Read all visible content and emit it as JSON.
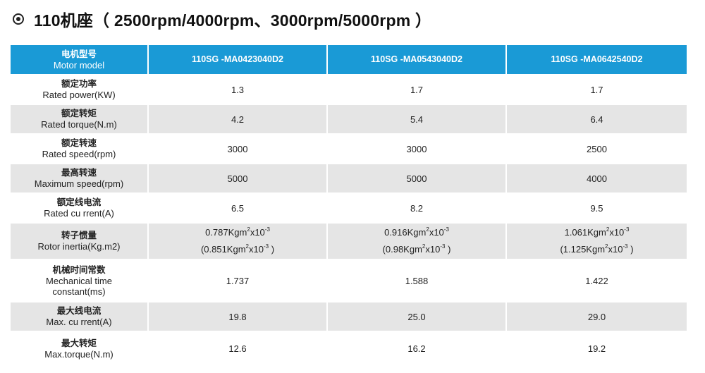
{
  "title": "110机座（ 2500rpm/4000rpm、3000rpm/5000rpm ）",
  "icon": "circle-dot-icon",
  "header": {
    "label_zh": "电机型号",
    "label_en": "Motor model",
    "models": [
      "110SG -MA0423040D2",
      "110SG -MA0543040D2",
      "110SG -MA0642540D2"
    ]
  },
  "rows": [
    {
      "zh": "额定功率",
      "en": "Rated power(KW)",
      "values": [
        "1.3",
        "1.7",
        "1.7"
      ]
    },
    {
      "zh": "额定转矩",
      "en": "Rated torque(N.m)",
      "values": [
        "4.2",
        "5.4",
        "6.4"
      ]
    },
    {
      "zh": "额定转速",
      "en": "Rated speed(rpm)",
      "values": [
        "3000",
        "3000",
        "2500"
      ]
    },
    {
      "zh": "最高转速",
      "en": "Maximum speed(rpm)",
      "values": [
        "5000",
        "5000",
        "4000"
      ]
    },
    {
      "zh": "额定线电流",
      "en": "Rated cu rrent(A)",
      "values": [
        "6.5",
        "8.2",
        "9.5"
      ]
    },
    {
      "zh": "转子惯量",
      "en": "Rotor inertia(Kg.m2)",
      "inertia": [
        {
          "a": "0.787Kgm",
          "b": "(0.851Kgm"
        },
        {
          "a": "0.916Kgm",
          "b": "(0.98Kgm"
        },
        {
          "a": "1.061Kgm",
          "b": "(1.125Kgm"
        }
      ]
    },
    {
      "zh": "机械时间常数",
      "en1": "Mechanical time",
      "en2": "constant(ms)",
      "values": [
        "1.737",
        "1.588",
        "1.422"
      ]
    },
    {
      "zh": "最大线电流",
      "en": "Max. cu rrent(A)",
      "values": [
        "19.8",
        "25.0",
        "29.0"
      ]
    },
    {
      "zh": "最大转矩",
      "en": "Max.torque(N.m)",
      "values": [
        "12.6",
        "16.2",
        "19.2"
      ]
    }
  ],
  "inertia_units": {
    "sq": "2",
    "x10": "x10",
    "exp": "-3",
    "close": ")"
  },
  "colors": {
    "header_bg": "#1a9ad6",
    "shade_bg": "#e5e5e5"
  }
}
